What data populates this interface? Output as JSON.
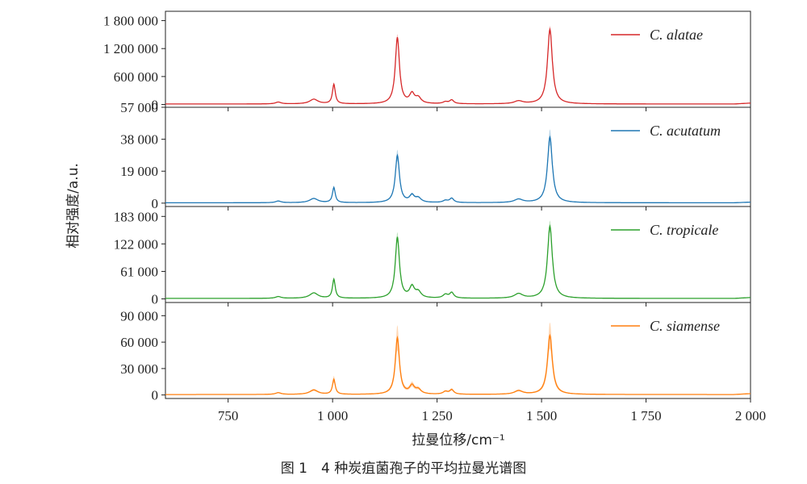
{
  "caption": "图 1　4 种炭疽菌孢子的平均拉曼光谱图",
  "chart_data": {
    "type": "line",
    "xlabel": "拉曼位移/cm⁻¹",
    "ylabel": "相对强度/a.u.",
    "xlim": [
      600,
      2000
    ],
    "x_ticks": [
      750,
      1000,
      1250,
      1500,
      1750,
      2000
    ],
    "x_tick_labels": [
      "750",
      "1 000",
      "1 250",
      "1 500",
      "1 750",
      "2 000"
    ],
    "legend_position": "top-right",
    "shared_x": true,
    "peak_positions": [
      870,
      955,
      1003,
      1155,
      1190,
      1205,
      1270,
      1285,
      1445,
      1520
    ],
    "series": [
      {
        "name": "C. alatae",
        "color": "#d62728",
        "ylim": [
          -60000,
          2000000
        ],
        "y_ticks": [
          0,
          600000,
          1200000,
          1800000
        ],
        "y_tick_labels": [
          "0",
          "600 000",
          "1 200 000",
          "1 800 000"
        ],
        "baseline": 10000,
        "peak_heights": [
          40000,
          100000,
          420000,
          1420000,
          200000,
          120000,
          40000,
          80000,
          60000,
          1600000
        ],
        "band_fraction": 0.05
      },
      {
        "name": "C. acutatum",
        "color": "#1f77b4",
        "ylim": [
          -2000,
          57000
        ],
        "y_ticks": [
          0,
          19000,
          38000,
          57000
        ],
        "y_tick_labels": [
          "0",
          "19 000",
          "38 000",
          "57 000"
        ],
        "baseline": 200,
        "peak_heights": [
          1000,
          2500,
          9000,
          28000,
          4000,
          2500,
          1200,
          2500,
          2000,
          39000
        ],
        "band_fraction": 0.12
      },
      {
        "name": "C. tropicale",
        "color": "#2ca02c",
        "ylim": [
          -8000,
          205000
        ],
        "y_ticks": [
          0,
          61000,
          122000,
          183000
        ],
        "y_tick_labels": [
          "0",
          "61 000",
          "122 000",
          "183 000"
        ],
        "baseline": 1000,
        "peak_heights": [
          4000,
          12000,
          42000,
          135000,
          24000,
          13000,
          8000,
          12000,
          10000,
          160000
        ],
        "band_fraction": 0.08
      },
      {
        "name": "C. siamense",
        "color": "#ff7f0e",
        "ylim": [
          -4000,
          105000
        ],
        "y_ticks": [
          0,
          30000,
          60000,
          90000
        ],
        "y_tick_labels": [
          "0",
          "30 000",
          "60 000",
          "90 000"
        ],
        "baseline": 500,
        "peak_heights": [
          2000,
          5000,
          17000,
          64000,
          9000,
          5000,
          3000,
          5000,
          4000,
          67000
        ],
        "band_fraction": 0.22
      }
    ]
  }
}
